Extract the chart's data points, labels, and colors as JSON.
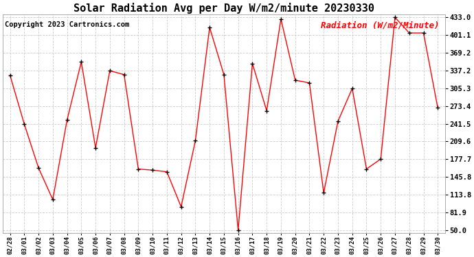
{
  "title": "Solar Radiation Avg per Day W/m2/minute 20230330",
  "copyright": "Copyright 2023 Cartronics.com",
  "legend_label": "Radiation (W/m2/Minute)",
  "dates": [
    "02/28",
    "03/01",
    "03/02",
    "03/03",
    "03/04",
    "03/05",
    "03/06",
    "03/07",
    "03/08",
    "03/09",
    "03/10",
    "03/11",
    "03/12",
    "03/13",
    "03/14",
    "03/15",
    "03/16",
    "03/17",
    "03/18",
    "03/19",
    "03/20",
    "03/21",
    "03/22",
    "03/23",
    "03/24",
    "03/25",
    "03/26",
    "03/27",
    "03/28",
    "03/29",
    "03/30"
  ],
  "values": [
    329,
    241,
    162,
    105,
    248,
    353,
    198,
    337,
    330,
    160,
    158,
    155,
    92,
    211,
    415,
    330,
    50,
    350,
    265,
    430,
    320,
    315,
    117,
    246,
    305,
    160,
    178,
    433,
    405,
    405,
    270
  ],
  "line_color": "red",
  "marker": "+",
  "marker_color": "black",
  "background_color": "#ffffff",
  "grid_color": "#cccccc",
  "title_fontsize": 11,
  "copyright_fontsize": 7.5,
  "legend_fontsize": 9,
  "yticks": [
    50.0,
    81.9,
    113.8,
    145.8,
    177.7,
    209.6,
    241.5,
    273.4,
    305.3,
    337.2,
    369.2,
    401.1,
    433.0
  ],
  "ymin": 50.0,
  "ymax": 433.0
}
